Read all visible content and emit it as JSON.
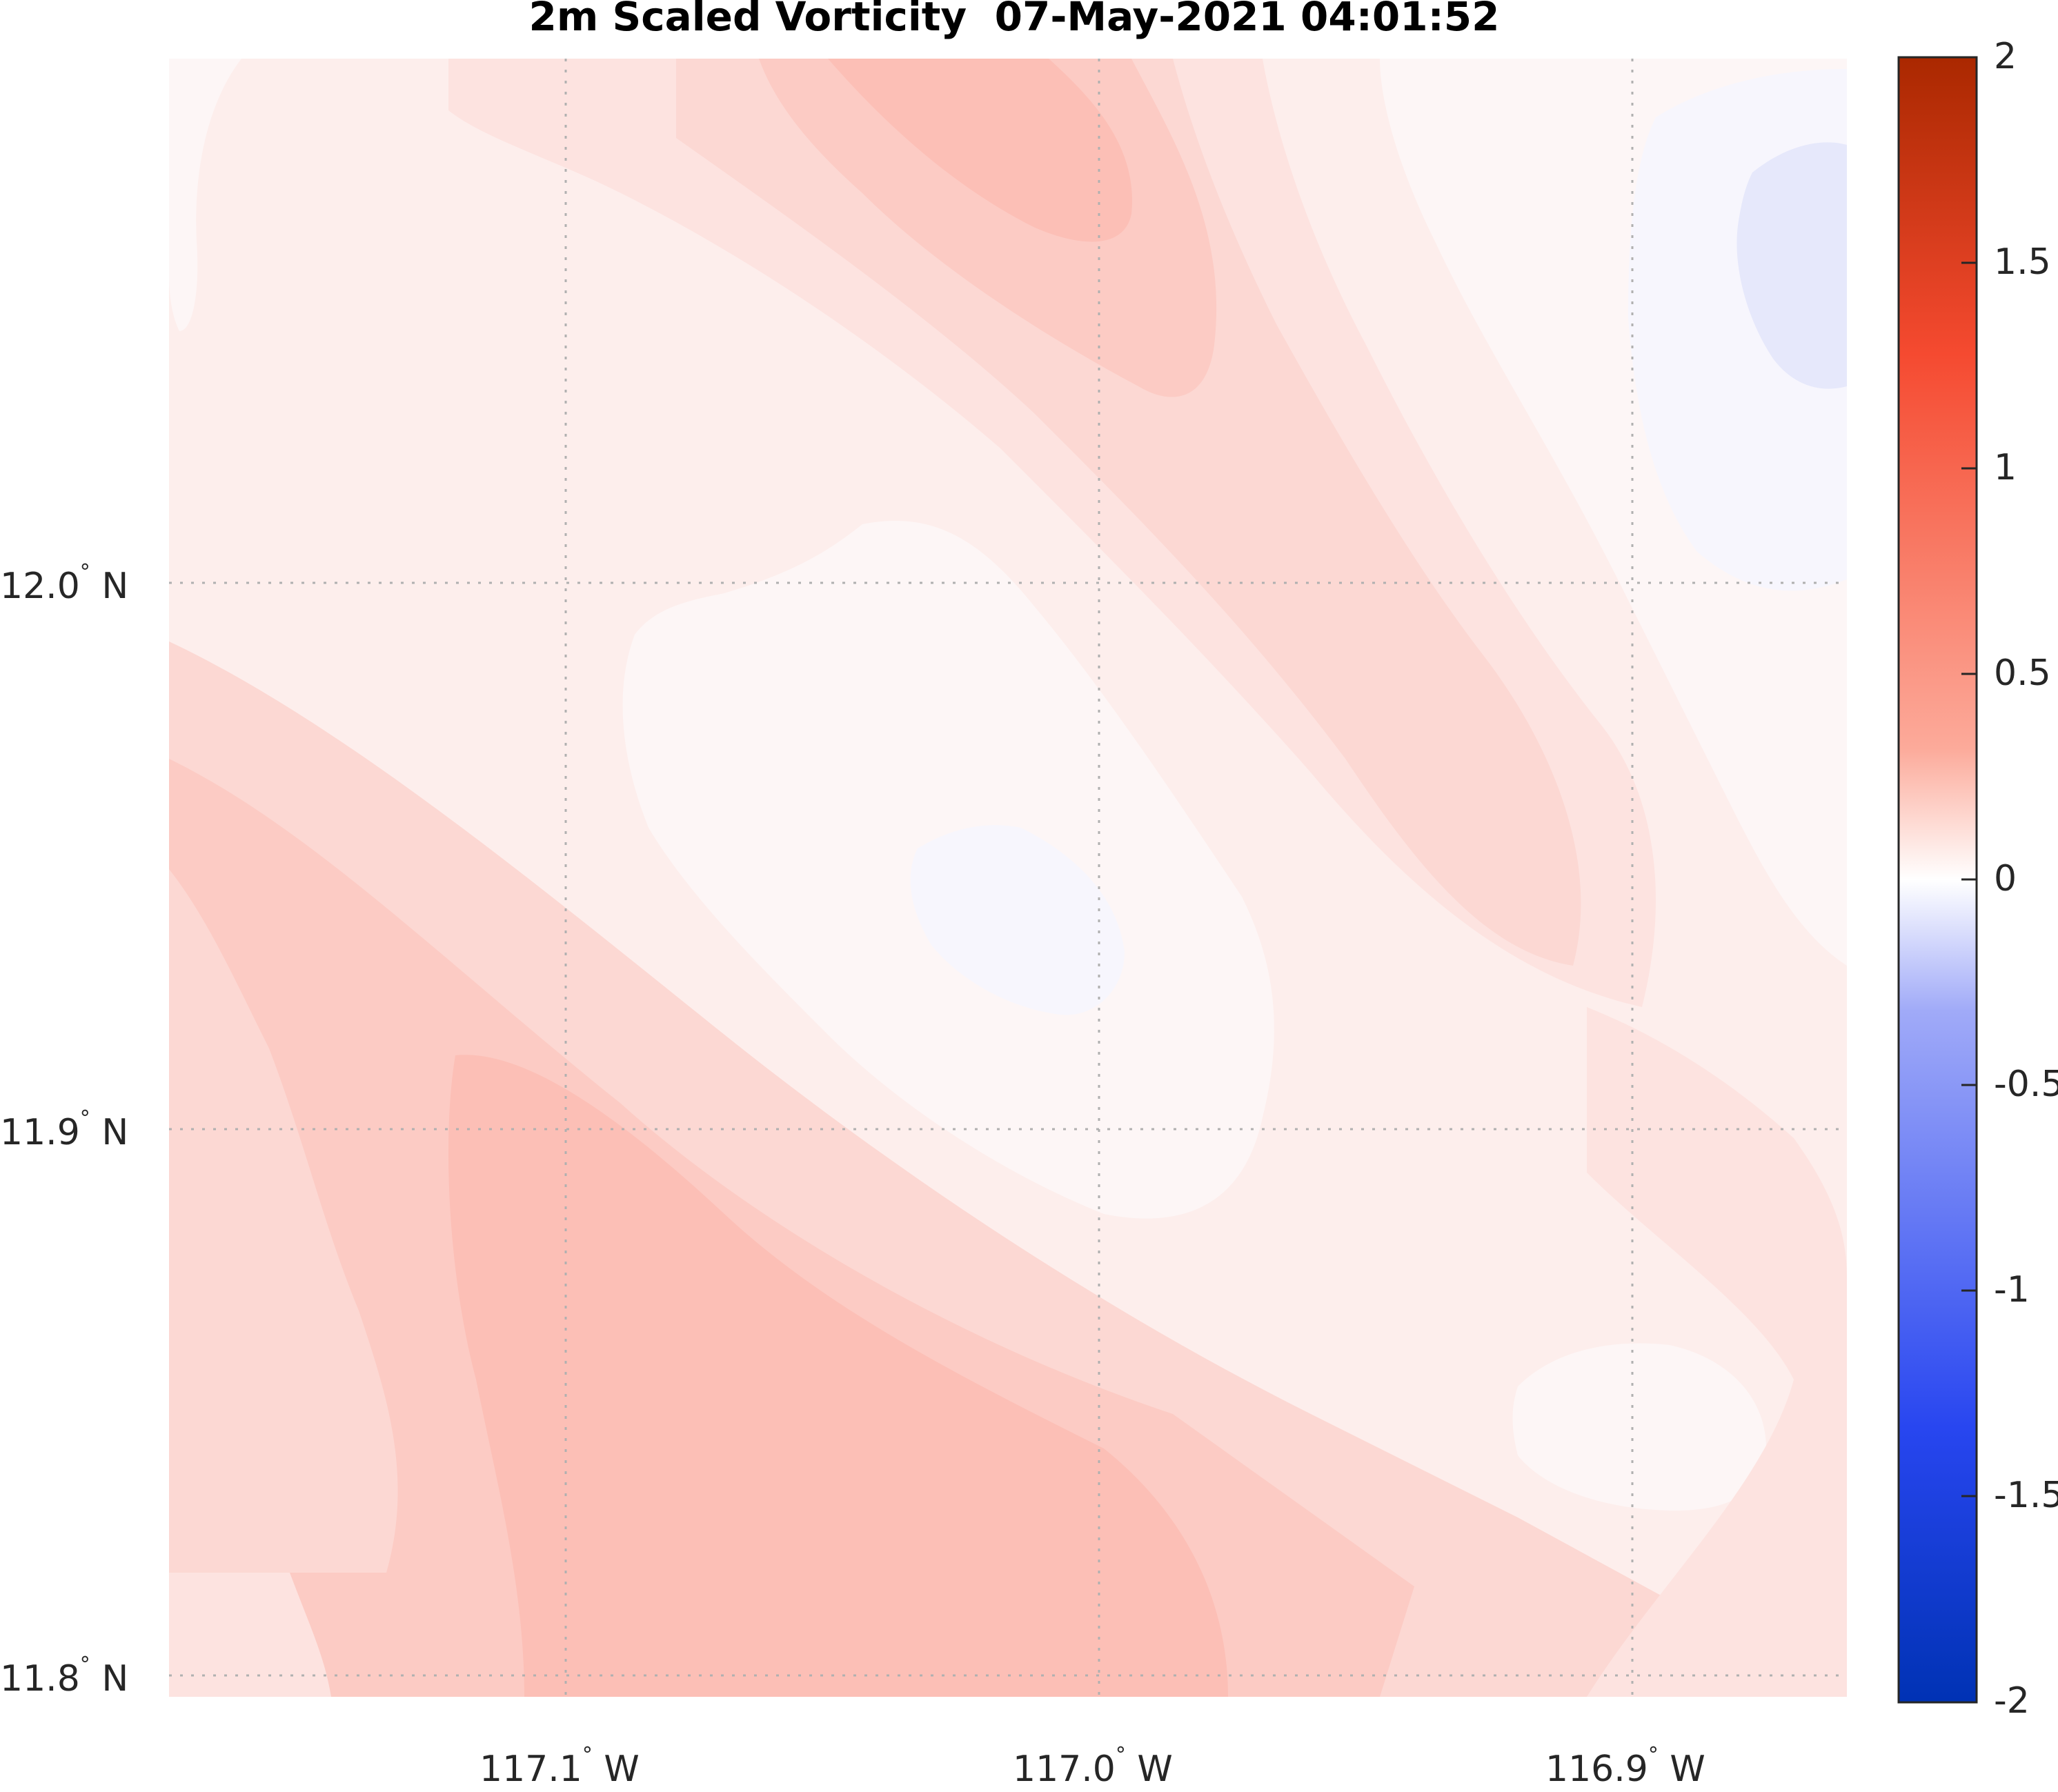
{
  "title": "2m Scaled Vorticity  07-May-2021 04:01:52",
  "map": {
    "x_axis_labels": [
      {
        "value": "117.1",
        "hemisphere": "W"
      },
      {
        "value": "117.0",
        "hemisphere": "W"
      },
      {
        "value": "116.9",
        "hemisphere": "W"
      }
    ],
    "y_axis_labels": [
      {
        "value": "12.0",
        "hemisphere": "N"
      },
      {
        "value": "11.9",
        "hemisphere": "N"
      },
      {
        "value": "11.8",
        "hemisphere": "N"
      }
    ],
    "degree_symbol": "°",
    "gridlines": "dotted",
    "field_colors": {
      "level_0": "#fdf6f6",
      "level_1": "#fdeeec",
      "level_2": "#fde3e0",
      "level_3": "#fcd8d3",
      "level_4": "#fccbc4",
      "level_5": "#fcbfb6",
      "neg_1": "#f7f6fd",
      "neg_2": "#e6e8fb"
    }
  },
  "colorbar": {
    "ticks": [
      "2",
      "1.5",
      "1",
      "0.5",
      "0",
      "-0.5",
      "-1",
      "-1.5",
      "-2"
    ],
    "min": -2,
    "max": 2,
    "colormap": "blue-white-red",
    "stops": [
      "#0032b4",
      "#2846f0",
      "#a0aaf8",
      "#ffffff",
      "#fcaa9a",
      "#f54a30",
      "#aa2800"
    ]
  }
}
